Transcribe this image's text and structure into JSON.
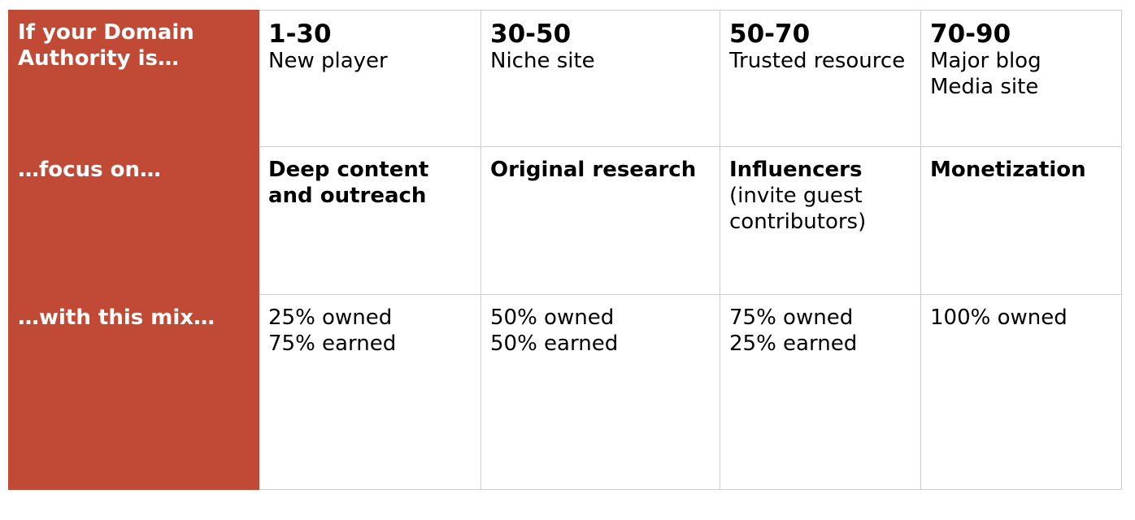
{
  "row_labels": {
    "authority": "If your Domain Authority is…",
    "focus": "…focus on…",
    "mix": "…with this mix…"
  },
  "columns": [
    {
      "range": "1-30",
      "descriptions": [
        "New player"
      ],
      "focus_bold": [
        "Deep content",
        "and outreach"
      ],
      "focus_extra": [],
      "mix": [
        "25% owned",
        "75% earned"
      ]
    },
    {
      "range": "30-50",
      "descriptions": [
        "Niche site"
      ],
      "focus_bold": [
        "Original research"
      ],
      "focus_extra": [],
      "mix": [
        "50% owned",
        "50% earned"
      ]
    },
    {
      "range": "50-70",
      "descriptions": [
        "Trusted resource"
      ],
      "focus_bold": [
        "Influencers"
      ],
      "focus_extra": [
        "(invite guest",
        "contributors)"
      ],
      "mix": [
        "75% owned",
        "25% earned"
      ]
    },
    {
      "range": "70-90",
      "descriptions": [
        "Major blog",
        "Media site"
      ],
      "focus_bold": [
        "Monetization"
      ],
      "focus_extra": [],
      "mix": [
        "100% owned"
      ]
    }
  ],
  "colors": {
    "label_background": "#c14a36",
    "label_text": "#ffffff",
    "grid_line": "#cfcfcf"
  }
}
